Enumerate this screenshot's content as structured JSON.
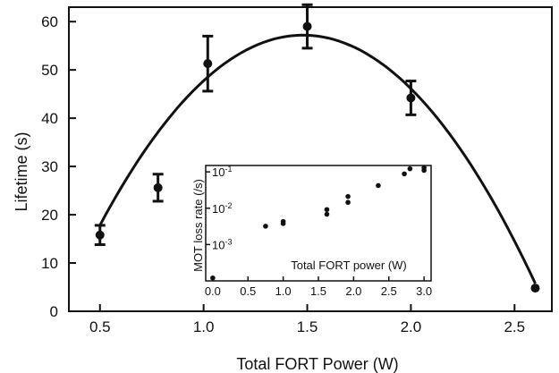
{
  "chart_data": [
    {
      "type": "scatter",
      "title": "",
      "xlabel": "Total FORT Power (W)",
      "ylabel": "Lifetime (s)",
      "xlim": [
        0.35,
        2.68
      ],
      "ylim": [
        0,
        63
      ],
      "x_ticks": [
        "0.5",
        "1.0",
        "1.5",
        "2.0",
        "2.5"
      ],
      "y_ticks": [
        "0",
        "10",
        "20",
        "30",
        "40",
        "50",
        "60"
      ],
      "grid": false,
      "legend": "none",
      "series": [
        {
          "points": [
            {
              "x": 0.5,
              "y": 15.8,
              "err": 2.0
            },
            {
              "x": 0.78,
              "y": 25.6,
              "err": 2.8
            },
            {
              "x": 1.02,
              "y": 51.3,
              "err": 5.7
            },
            {
              "x": 1.5,
              "y": 59.0,
              "err": 4.5
            },
            {
              "x": 2.0,
              "y": 44.2,
              "err": 3.5
            },
            {
              "x": 2.6,
              "y": 4.8,
              "err": 0
            }
          ]
        }
      ],
      "fit_curve": {
        "form": "quadratic",
        "vertex_x": 1.48,
        "vertex_y": 57.2,
        "x_range": [
          0.5,
          2.6
        ],
        "coefficient": -41.0
      }
    },
    {
      "type": "scatter",
      "title": "",
      "xlabel": "Total FORT power (W)",
      "ylabel": "MOT loss rate (/s)",
      "xlim": [
        -0.1,
        3.1
      ],
      "y_scale": "log",
      "ylim": [
        0.0001,
        0.15
      ],
      "x_ticks": [
        "0.0",
        "0.5",
        "1.0",
        "1.5",
        "2.0",
        "2.5",
        "3.0"
      ],
      "y_ticks": [
        {
          "value": 0.001,
          "base": "10",
          "exp": "-3"
        },
        {
          "value": 0.01,
          "base": "10",
          "exp": "-2"
        },
        {
          "value": 0.1,
          "base": "10",
          "exp": "-1"
        }
      ],
      "grid": false,
      "legend": "none",
      "series": [
        {
          "points": [
            {
              "x": 0.0,
              "y": 0.00012
            },
            {
              "x": 0.75,
              "y": 0.0032
            },
            {
              "x": 1.0,
              "y": 0.0038
            },
            {
              "x": 1.0,
              "y": 0.0043
            },
            {
              "x": 1.62,
              "y": 0.0068
            },
            {
              "x": 1.62,
              "y": 0.0092
            },
            {
              "x": 1.92,
              "y": 0.0145
            },
            {
              "x": 1.92,
              "y": 0.021
            },
            {
              "x": 2.35,
              "y": 0.042
            },
            {
              "x": 2.72,
              "y": 0.088
            },
            {
              "x": 2.8,
              "y": 0.122
            },
            {
              "x": 3.0,
              "y": 0.11
            },
            {
              "x": 3.0,
              "y": 0.13
            }
          ]
        }
      ]
    }
  ]
}
